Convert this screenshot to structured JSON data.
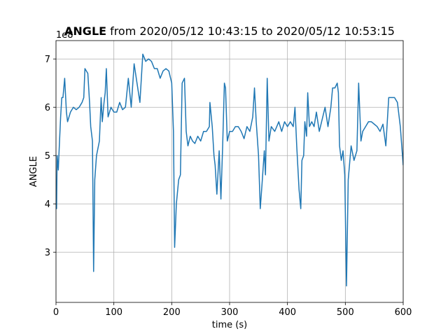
{
  "chart_data": {
    "type": "line",
    "title_prefix": "ANGLE",
    "title": "from 2020/05/12 10:43:15 to 2020/05/12 10:53:15",
    "y_offset_text": "1e8",
    "x_label": "time (s)",
    "y_label": "ANGLE",
    "x": [
      0,
      1,
      2,
      4,
      5,
      8,
      10,
      12,
      15,
      18,
      20,
      25,
      30,
      35,
      40,
      45,
      48,
      50,
      55,
      58,
      60,
      63,
      65,
      67,
      70,
      75,
      78,
      80,
      83,
      85,
      87,
      90,
      95,
      100,
      105,
      110,
      115,
      120,
      125,
      130,
      135,
      140,
      145,
      150,
      155,
      160,
      165,
      170,
      175,
      180,
      185,
      190,
      195,
      200,
      203,
      205,
      208,
      212,
      215,
      218,
      222,
      225,
      228,
      232,
      236,
      240,
      245,
      250,
      255,
      260,
      265,
      266,
      270,
      273,
      275,
      278,
      282,
      285,
      288,
      291,
      293,
      296,
      300,
      305,
      310,
      315,
      320,
      325,
      330,
      335,
      340,
      343,
      346,
      350,
      353,
      356,
      360,
      362,
      365,
      368,
      372,
      378,
      385,
      390,
      395,
      400,
      405,
      410,
      413,
      416,
      420,
      423,
      425,
      428,
      430,
      433,
      435,
      438,
      442,
      446,
      450,
      455,
      460,
      465,
      470,
      475,
      478,
      482,
      486,
      488,
      490,
      493,
      496,
      499,
      502,
      505,
      510,
      515,
      520,
      523,
      527,
      530,
      535,
      540,
      545,
      550,
      555,
      560,
      565,
      570,
      575,
      580,
      585,
      590,
      595,
      600
    ],
    "series": [
      {
        "name": "ANGLE",
        "color": "#1f77b4",
        "values": [
          4.0,
          3.9,
          5.0,
          4.7,
          5.0,
          5.8,
          6.2,
          6.2,
          6.6,
          5.9,
          5.7,
          5.9,
          6.0,
          5.95,
          6.0,
          6.1,
          6.2,
          6.8,
          6.7,
          6.1,
          5.6,
          5.3,
          2.6,
          4.5,
          5.0,
          5.3,
          6.2,
          5.7,
          6.1,
          6.3,
          6.8,
          5.8,
          6.0,
          5.9,
          5.9,
          6.1,
          5.95,
          6.0,
          6.6,
          6.0,
          6.9,
          6.5,
          6.1,
          7.1,
          6.95,
          7.0,
          6.95,
          6.8,
          6.8,
          6.6,
          6.75,
          6.8,
          6.75,
          6.5,
          5.5,
          3.1,
          4.0,
          4.5,
          4.6,
          6.5,
          6.6,
          5.5,
          5.2,
          5.4,
          5.3,
          5.25,
          5.4,
          5.3,
          5.5,
          5.5,
          5.6,
          6.1,
          5.6,
          5.0,
          4.8,
          4.2,
          5.1,
          4.1,
          5.2,
          6.5,
          6.4,
          5.3,
          5.5,
          5.5,
          5.6,
          5.6,
          5.5,
          5.35,
          5.6,
          5.5,
          5.8,
          6.4,
          5.7,
          5.0,
          3.9,
          4.4,
          5.1,
          4.6,
          6.6,
          5.3,
          5.6,
          5.5,
          5.7,
          5.5,
          5.7,
          5.6,
          5.7,
          5.6,
          6.0,
          5.2,
          4.3,
          3.9,
          4.9,
          5.0,
          5.7,
          5.4,
          6.3,
          5.6,
          5.7,
          5.6,
          5.9,
          5.5,
          5.75,
          6.0,
          5.6,
          6.0,
          6.4,
          6.4,
          6.5,
          6.3,
          5.2,
          4.9,
          5.1,
          4.6,
          2.3,
          4.5,
          5.2,
          4.9,
          5.1,
          6.5,
          5.3,
          5.5,
          5.6,
          5.7,
          5.7,
          5.65,
          5.6,
          5.5,
          5.65,
          5.2,
          6.2,
          6.2,
          6.2,
          6.1,
          5.6,
          4.8
        ]
      }
    ],
    "xlim": [
      0,
      600
    ],
    "ylim": [
      1.96,
      7.38
    ],
    "xticks": [
      0,
      100,
      200,
      300,
      400,
      500,
      600
    ],
    "yticks": [
      3,
      4,
      5,
      6,
      7
    ],
    "grid": true
  }
}
